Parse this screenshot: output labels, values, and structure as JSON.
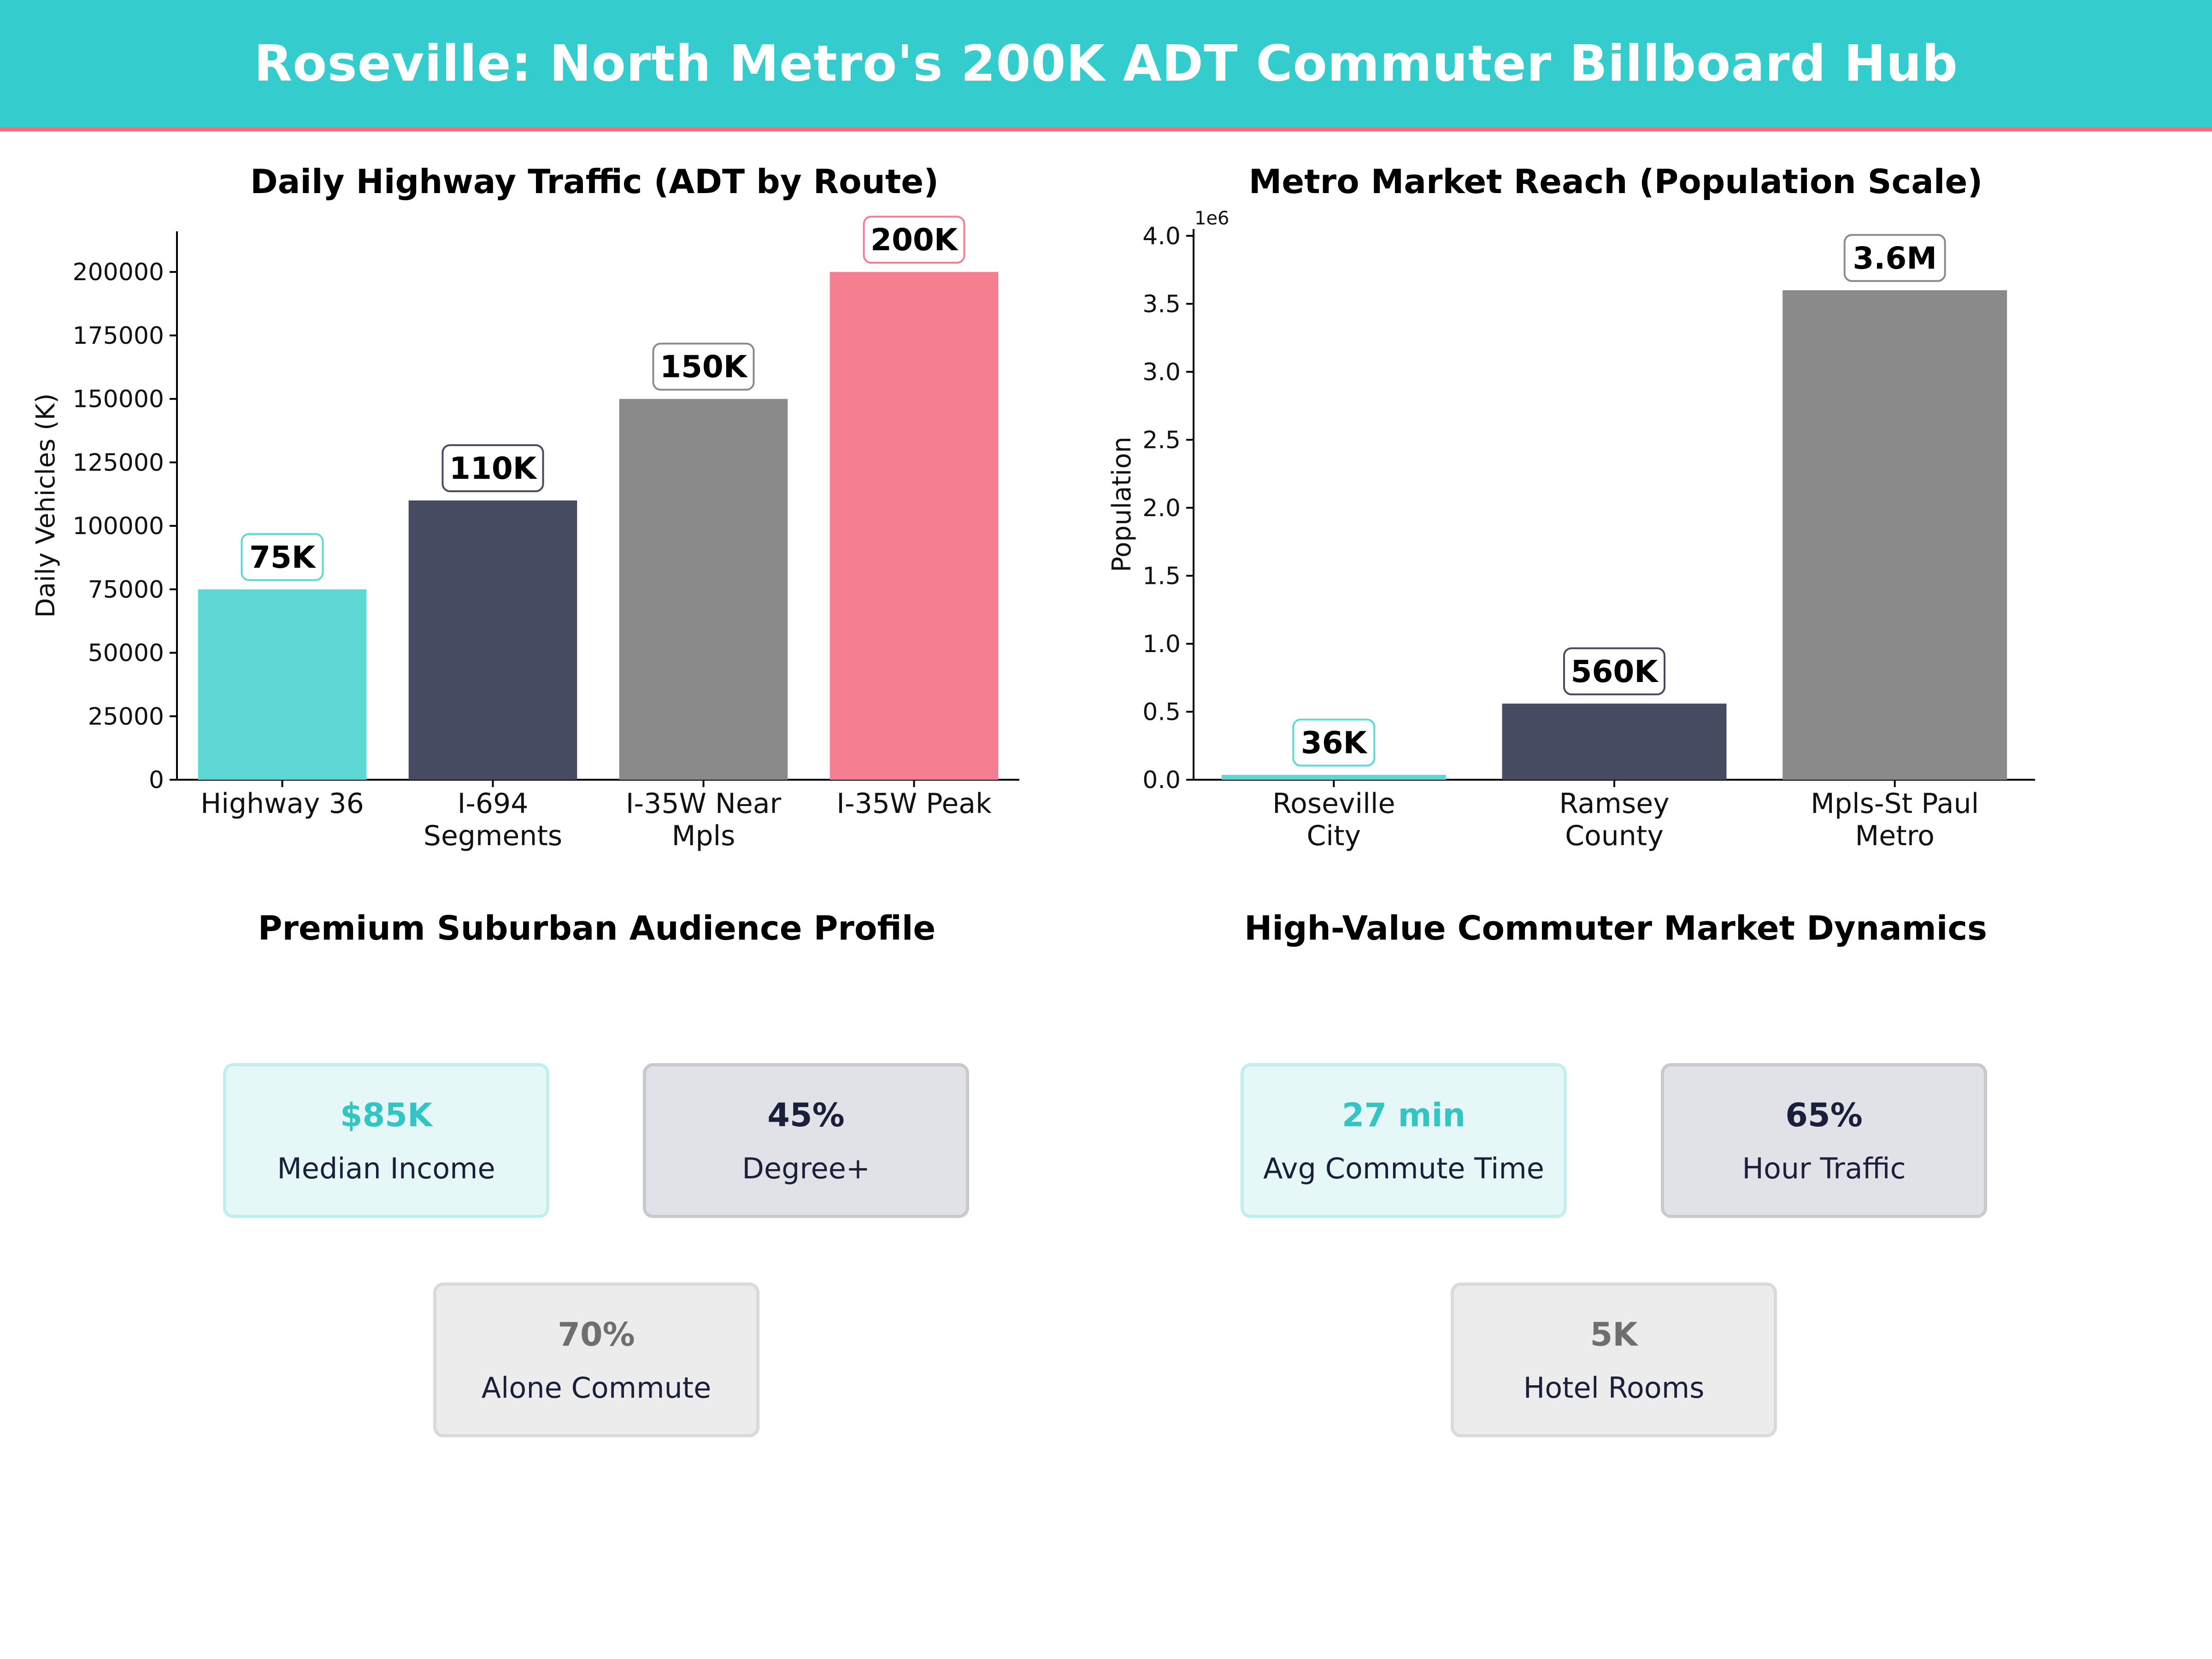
{
  "header": {
    "title": "Roseville: North Metro's 200K ADT Commuter Billboard Hub"
  },
  "colors": {
    "teal": "#5dd8d5",
    "navy": "#464b61",
    "gray": "#8a8a8a",
    "pink": "#f57e91",
    "banner": "#35cccd",
    "banner_accent": "#f16f84"
  },
  "chart_data": [
    {
      "type": "bar",
      "title": "Daily Highway Traffic (ADT by Route)",
      "xlabel": "",
      "ylabel": "Daily Vehicles (K)",
      "categories": [
        "Highway 36",
        "I-694 Segments",
        "I-35W Near Mpls",
        "I-35W Peak"
      ],
      "category_lines": [
        [
          "Highway 36"
        ],
        [
          "I-694",
          "Segments"
        ],
        [
          "I-35W Near",
          "Mpls"
        ],
        [
          "I-35W Peak"
        ]
      ],
      "values": [
        75000,
        110000,
        150000,
        200000
      ],
      "data_labels": [
        "75K",
        "110K",
        "150K",
        "200K"
      ],
      "bar_colors": [
        "#5dd8d5",
        "#464b61",
        "#8a8a8a",
        "#f57e91"
      ],
      "ylim": [
        0,
        216000
      ],
      "yticks": [
        0,
        25000,
        50000,
        75000,
        100000,
        125000,
        150000,
        175000,
        200000
      ],
      "ytick_labels": [
        "0",
        "25000",
        "50000",
        "75000",
        "100000",
        "125000",
        "150000",
        "175000",
        "200000"
      ],
      "grid": false
    },
    {
      "type": "bar",
      "title": "Metro Market Reach (Population Scale)",
      "xlabel": "",
      "ylabel": "Population",
      "axis_offset_label": "1e6",
      "categories": [
        "Roseville City",
        "Ramsey County",
        "Mpls-St Paul Metro"
      ],
      "category_lines": [
        [
          "Roseville",
          "City"
        ],
        [
          "Ramsey",
          "County"
        ],
        [
          "Mpls-St Paul",
          "Metro"
        ]
      ],
      "values": [
        36000,
        560000,
        3600000
      ],
      "data_labels": [
        "36K",
        "560K",
        "3.6M"
      ],
      "bar_colors": [
        "#5dd8d5",
        "#464b61",
        "#8a8a8a"
      ],
      "ylim": [
        0,
        4050000
      ],
      "yticks": [
        0,
        500000,
        1000000,
        1500000,
        2000000,
        2500000,
        3000000,
        3500000,
        4000000
      ],
      "ytick_labels": [
        "0.0",
        "0.5",
        "1.0",
        "1.5",
        "2.0",
        "2.5",
        "3.0",
        "3.5",
        "4.0"
      ],
      "grid": false
    }
  ],
  "audience_panel": {
    "title": "Premium Suburban Audience Profile",
    "cards": [
      {
        "value": "$85K",
        "label": "Median Income"
      },
      {
        "value": "45%",
        "label": "Degree+"
      },
      {
        "value": "70%",
        "label": "Alone Commute"
      }
    ]
  },
  "market_panel": {
    "title": "High-Value Commuter Market Dynamics",
    "cards": [
      {
        "value": "27 min",
        "label": "Avg Commute Time"
      },
      {
        "value": "65%",
        "label": "Hour Traffic"
      },
      {
        "value": "5K",
        "label": "Hotel Rooms"
      }
    ]
  }
}
